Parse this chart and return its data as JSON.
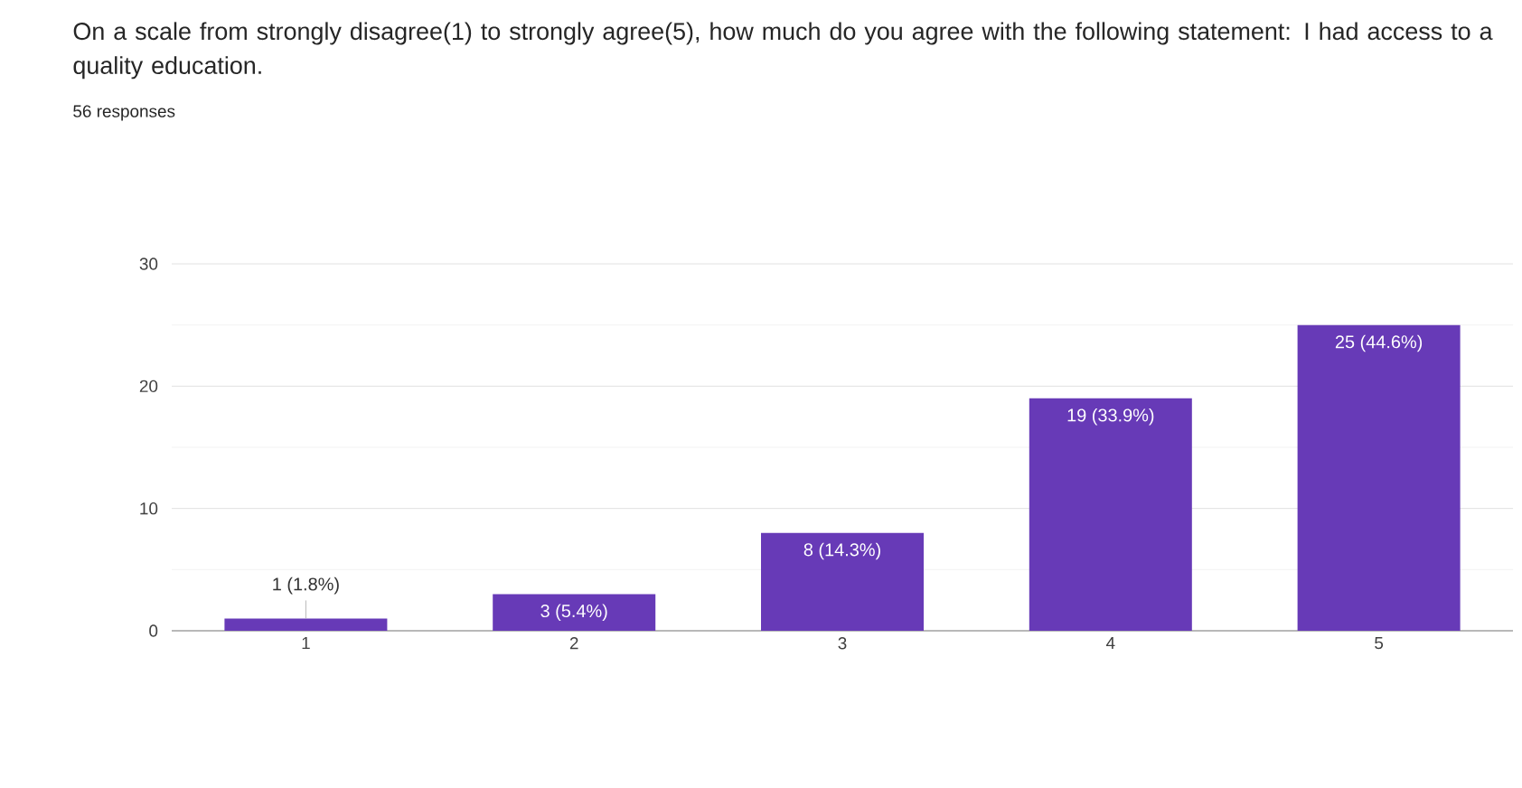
{
  "chart_data": {
    "type": "bar",
    "title": "On a scale from strongly disagree(1) to strongly agree(5), how much do you agree with the following statement: I had access to a quality education.",
    "subtitle": "56 responses",
    "categories": [
      "1",
      "2",
      "3",
      "4",
      "5"
    ],
    "values": [
      1,
      3,
      8,
      19,
      25
    ],
    "value_labels": [
      "1 (1.8%)",
      "3 (5.4%)",
      "8 (14.3%)",
      "19 (33.9%)",
      "25 (44.6%)"
    ],
    "color": "#673ab7",
    "ylim": [
      0,
      30
    ],
    "yticks": [
      0,
      10,
      20,
      30
    ],
    "grid": "y"
  }
}
